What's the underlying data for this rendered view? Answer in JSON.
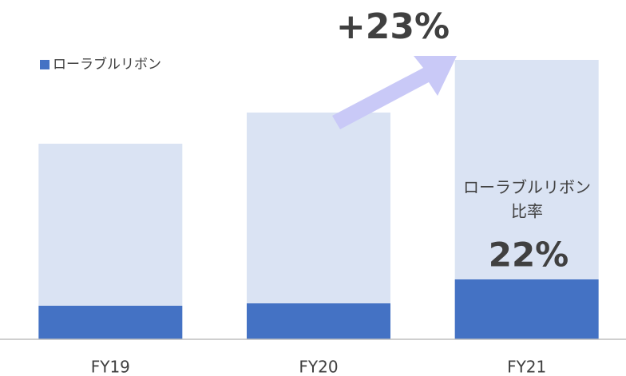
{
  "chart_data": {
    "type": "stacked_bar",
    "categories": [
      "FY19",
      "FY20",
      "FY21"
    ],
    "series": [
      {
        "name": "ローラブルリボン",
        "color": "#4472c4",
        "values": [
          42,
          45,
          75
        ]
      },
      {
        "color": "#dae3f3",
        "values": [
          203,
          239,
          275
        ]
      }
    ],
    "ylim": [
      0,
      350
    ],
    "legend": "top-left",
    "annotations": [
      "+23%",
      "ローラブルリボン",
      "比率",
      "22%"
    ]
  }
}
